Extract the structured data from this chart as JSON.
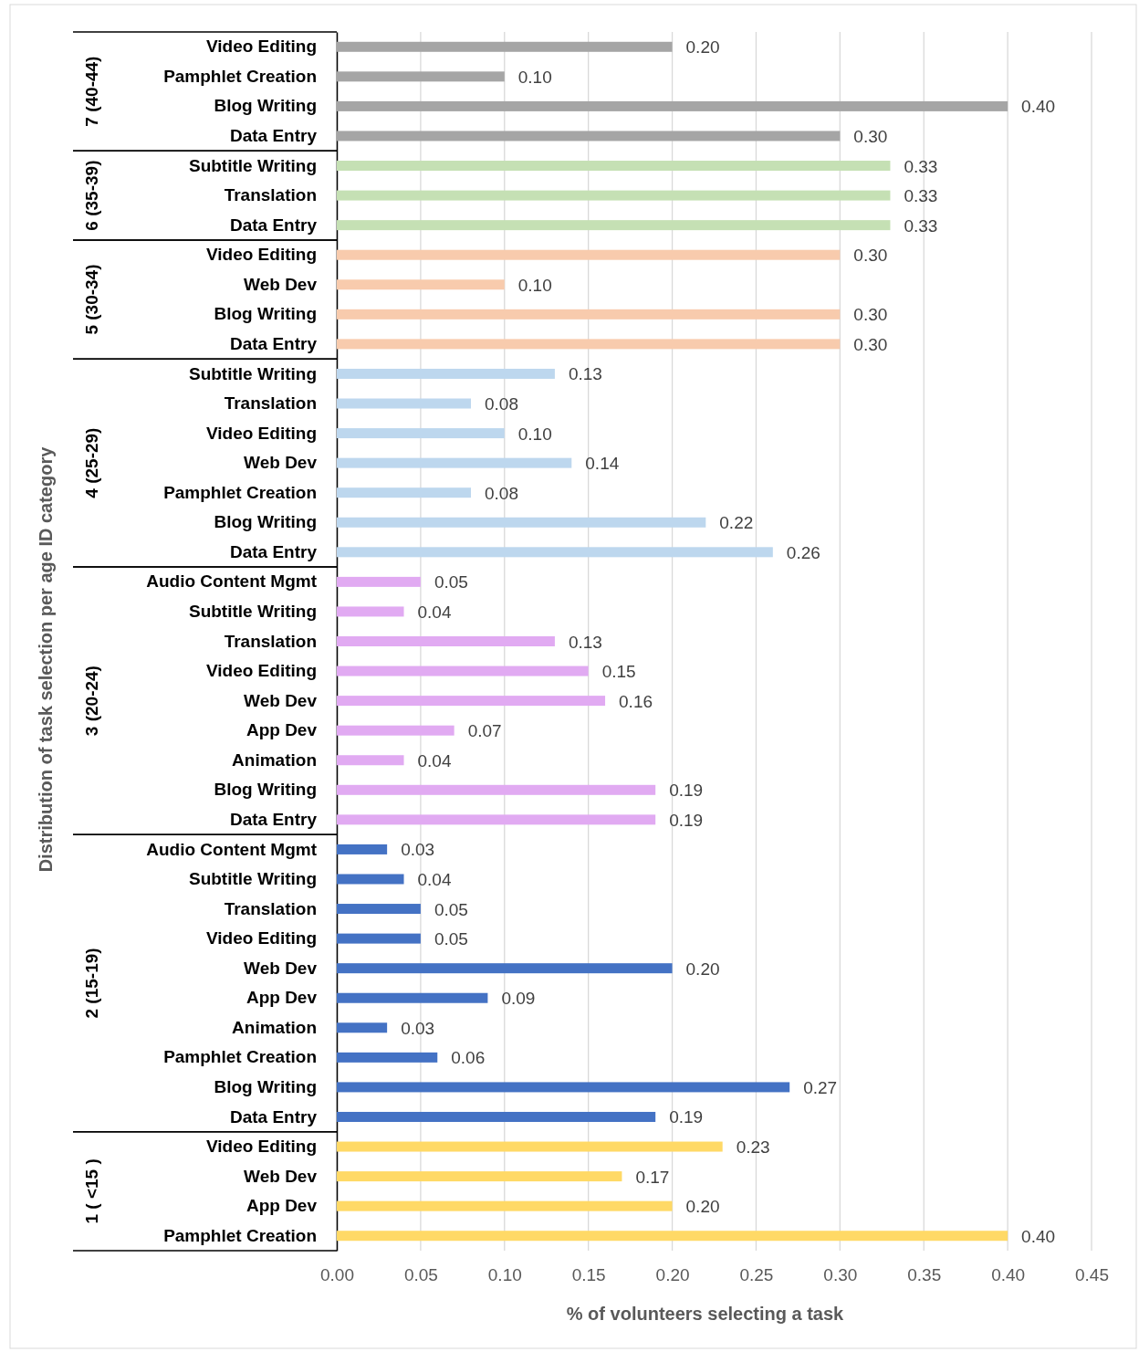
{
  "chart_data": {
    "type": "bar",
    "orientation": "horizontal",
    "xlabel": "% of volunteers selecting a task",
    "ylabel": "Distribution of task selection per age ID category",
    "categories": [
      "Video Editing",
      "Pamphlet Creation",
      "Blog Writing",
      "Data Entry",
      "Subtitle Writing",
      "Translation",
      "Data Entry",
      "Video Editing",
      "Web Dev",
      "Blog Writing",
      "Data Entry",
      "Subtitle Writing",
      "Translation",
      "Video Editing",
      "Web Dev",
      "Pamphlet Creation",
      "Blog Writing",
      "Data Entry",
      "Audio Content Mgmt",
      "Subtitle Writing",
      "Translation",
      "Video Editing",
      "Web Dev",
      "App Dev",
      "Animation",
      "Blog Writing",
      "Data Entry",
      "Audio Content Mgmt",
      "Subtitle Writing",
      "Translation",
      "Video Editing",
      "Web Dev",
      "App Dev",
      "Animation",
      "Pamphlet Creation",
      "Blog Writing",
      "Data Entry",
      "Video Editing",
      "Web Dev",
      "App Dev",
      "Pamphlet Creation"
    ],
    "series": [
      {
        "color": "#a5a5a5",
        "values": [
          0.2,
          0.1,
          0.4,
          0.3,
          null,
          null,
          null,
          null,
          null,
          null,
          null,
          null,
          null,
          null,
          null,
          null,
          null,
          null,
          null,
          null,
          null,
          null,
          null,
          null,
          null,
          null,
          null,
          null,
          null,
          null,
          null,
          null,
          null,
          null,
          null,
          null,
          null,
          null,
          null,
          null,
          null
        ],
        "value_labels": [
          "0.20",
          "0.10",
          "0.40",
          "0.30",
          null,
          null,
          null,
          null,
          null,
          null,
          null,
          null,
          null,
          null,
          null,
          null,
          null,
          null,
          null,
          null,
          null,
          null,
          null,
          null,
          null,
          null,
          null,
          null,
          null,
          null,
          null,
          null,
          null,
          null,
          null,
          null,
          null,
          null,
          null,
          null,
          null
        ]
      },
      {
        "color": "#c5e0b4",
        "values": [
          null,
          null,
          null,
          null,
          0.33,
          0.33,
          0.33,
          null,
          null,
          null,
          null,
          null,
          null,
          null,
          null,
          null,
          null,
          null,
          null,
          null,
          null,
          null,
          null,
          null,
          null,
          null,
          null,
          null,
          null,
          null,
          null,
          null,
          null,
          null,
          null,
          null,
          null,
          null,
          null,
          null,
          null
        ],
        "value_labels": [
          null,
          null,
          null,
          null,
          "0.33",
          "0.33",
          "0.33",
          null,
          null,
          null,
          null,
          null,
          null,
          null,
          null,
          null,
          null,
          null,
          null,
          null,
          null,
          null,
          null,
          null,
          null,
          null,
          null,
          null,
          null,
          null,
          null,
          null,
          null,
          null,
          null,
          null,
          null,
          null,
          null,
          null,
          null
        ]
      },
      {
        "color": "#f8cbad",
        "values": [
          null,
          null,
          null,
          null,
          null,
          null,
          null,
          0.3,
          0.1,
          0.3,
          0.3,
          null,
          null,
          null,
          null,
          null,
          null,
          null,
          null,
          null,
          null,
          null,
          null,
          null,
          null,
          null,
          null,
          null,
          null,
          null,
          null,
          null,
          null,
          null,
          null,
          null,
          null,
          null,
          null,
          null,
          null
        ],
        "value_labels": [
          null,
          null,
          null,
          null,
          null,
          null,
          null,
          "0.30",
          "0.10",
          "0.30",
          "0.30",
          null,
          null,
          null,
          null,
          null,
          null,
          null,
          null,
          null,
          null,
          null,
          null,
          null,
          null,
          null,
          null,
          null,
          null,
          null,
          null,
          null,
          null,
          null,
          null,
          null,
          null,
          null,
          null,
          null,
          null
        ]
      },
      {
        "color": "#bdd7ee",
        "values": [
          null,
          null,
          null,
          null,
          null,
          null,
          null,
          null,
          null,
          null,
          null,
          0.13,
          0.08,
          0.1,
          0.14,
          0.08,
          0.22,
          0.26,
          null,
          null,
          null,
          null,
          null,
          null,
          null,
          null,
          null,
          null,
          null,
          null,
          null,
          null,
          null,
          null,
          null,
          null,
          null,
          null,
          null,
          null,
          null
        ],
        "value_labels": [
          null,
          null,
          null,
          null,
          null,
          null,
          null,
          null,
          null,
          null,
          null,
          "0.13",
          "0.08",
          "0.10",
          "0.14",
          "0.08",
          "0.22",
          "0.26",
          null,
          null,
          null,
          null,
          null,
          null,
          null,
          null,
          null,
          null,
          null,
          null,
          null,
          null,
          null,
          null,
          null,
          null,
          null,
          null,
          null,
          null,
          null
        ]
      },
      {
        "color": "#e1aaf2",
        "values": [
          null,
          null,
          null,
          null,
          null,
          null,
          null,
          null,
          null,
          null,
          null,
          null,
          null,
          null,
          null,
          null,
          null,
          null,
          0.05,
          0.04,
          0.13,
          0.15,
          0.16,
          0.07,
          0.04,
          0.19,
          0.19,
          null,
          null,
          null,
          null,
          null,
          null,
          null,
          null,
          null,
          null,
          null,
          null,
          null,
          null
        ],
        "value_labels": [
          null,
          null,
          null,
          null,
          null,
          null,
          null,
          null,
          null,
          null,
          null,
          null,
          null,
          null,
          null,
          null,
          null,
          null,
          "0.05",
          "0.04",
          "0.13",
          "0.15",
          "0.16",
          "0.07",
          "0.04",
          "0.19",
          "0.19",
          null,
          null,
          null,
          null,
          null,
          null,
          null,
          null,
          null,
          null,
          null,
          null,
          null,
          null
        ]
      },
      {
        "color": "#4472c4",
        "values": [
          null,
          null,
          null,
          null,
          null,
          null,
          null,
          null,
          null,
          null,
          null,
          null,
          null,
          null,
          null,
          null,
          null,
          null,
          null,
          null,
          null,
          null,
          null,
          null,
          null,
          null,
          null,
          0.03,
          0.04,
          0.05,
          0.05,
          0.2,
          0.09,
          0.03,
          0.06,
          0.27,
          0.19,
          null,
          null,
          null,
          null
        ],
        "value_labels": [
          null,
          null,
          null,
          null,
          null,
          null,
          null,
          null,
          null,
          null,
          null,
          null,
          null,
          null,
          null,
          null,
          null,
          null,
          null,
          null,
          null,
          null,
          null,
          null,
          null,
          null,
          null,
          "0.03",
          "0.04",
          "0.05",
          "0.05",
          "0.20",
          "0.09",
          "0.03",
          "0.06",
          "0.27",
          "0.19",
          null,
          null,
          null,
          null
        ]
      },
      {
        "color": "#ffd966",
        "values": [
          null,
          null,
          null,
          null,
          null,
          null,
          null,
          null,
          null,
          null,
          null,
          null,
          null,
          null,
          null,
          null,
          null,
          null,
          null,
          null,
          null,
          null,
          null,
          null,
          null,
          null,
          null,
          null,
          null,
          null,
          null,
          null,
          null,
          null,
          null,
          null,
          null,
          0.23,
          0.17,
          0.2,
          0.4
        ],
        "value_labels": [
          null,
          null,
          null,
          null,
          null,
          null,
          null,
          null,
          null,
          null,
          null,
          null,
          null,
          null,
          null,
          null,
          null,
          null,
          null,
          null,
          null,
          null,
          null,
          null,
          null,
          null,
          null,
          null,
          null,
          null,
          null,
          null,
          null,
          null,
          null,
          null,
          null,
          "0.23",
          "0.17",
          "0.20",
          "0.40"
        ]
      }
    ],
    "xlim": [
      0,
      0.45
    ],
    "xticks": [
      {
        "value": 0,
        "label": "0.00"
      },
      {
        "value": 0.05,
        "label": "0.05"
      },
      {
        "value": 0.1,
        "label": "0.10"
      },
      {
        "value": 0.15,
        "label": "0.15"
      },
      {
        "value": 0.2,
        "label": "0.20"
      },
      {
        "value": 0.25,
        "label": "0.25"
      },
      {
        "value": 0.3,
        "label": "0.30"
      },
      {
        "value": 0.35,
        "label": "0.35"
      },
      {
        "value": 0.4,
        "label": "0.40"
      },
      {
        "value": 0.45,
        "label": "0.45"
      }
    ],
    "annotations": [
      "7 (40-44)",
      "6 (35-39)",
      "5 (30-34)",
      "4 (25-29)",
      "3 (20-24)",
      "2 (15-19)",
      "1 ( <15 )"
    ],
    "grid": "x",
    "legend": false
  }
}
